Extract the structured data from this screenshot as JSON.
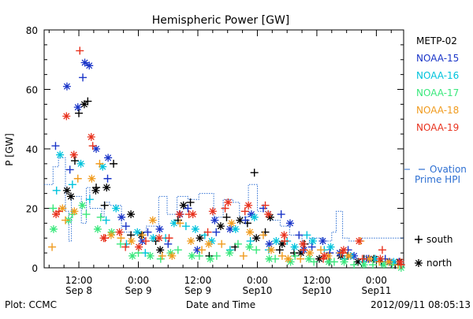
{
  "chart_data": {
    "type": "scatter",
    "title": "Hemispheric Power [GW]",
    "xlabel": "Date and Time",
    "ylabel": "P [GW]",
    "ylim": [
      0,
      80
    ],
    "y_ticks": [
      0,
      20,
      40,
      60,
      80
    ],
    "xlim": [
      5.0,
      77.5
    ],
    "x_ticks": [
      {
        "x": 12,
        "labels": [
          "12:00",
          "Sep 8"
        ]
      },
      {
        "x": 24,
        "labels": [
          "0:00",
          "Sep 9"
        ]
      },
      {
        "x": 36,
        "labels": [
          "12:00",
          "Sep 9"
        ]
      },
      {
        "x": 48,
        "labels": [
          "0:00",
          "Sep10"
        ]
      },
      {
        "x": 60,
        "labels": [
          "12:00",
          "Sep10"
        ]
      },
      {
        "x": 72,
        "labels": [
          "0:00",
          "Sep11"
        ]
      }
    ],
    "x_units": "hours from 2012-09-08 00:00",
    "footer_left": "Plot: CCMC",
    "footer_right": "2012/09/11 08:05:13",
    "marker_legend": [
      {
        "symbol": "+",
        "label": "south"
      },
      {
        "symbol": "*",
        "label": "north"
      }
    ],
    "series": [
      {
        "name": "METP-02",
        "color": "#000000",
        "south": [
          [
            12,
            52
          ],
          [
            13.8,
            56
          ],
          [
            11.2,
            36
          ],
          [
            15.5,
            27
          ],
          [
            19,
            35
          ],
          [
            17.2,
            21
          ],
          [
            22.5,
            11
          ],
          [
            27.5,
            9
          ],
          [
            32,
            16
          ],
          [
            34.5,
            22
          ],
          [
            38.3,
            4
          ],
          [
            41.8,
            17
          ],
          [
            43.5,
            7
          ],
          [
            47.4,
            32
          ],
          [
            46,
            15
          ],
          [
            49.6,
            12
          ],
          [
            52.5,
            6
          ],
          [
            55.4,
            5
          ],
          [
            57.5,
            8
          ],
          [
            62.5,
            2
          ],
          [
            66.2,
            4
          ],
          [
            69.5,
            3
          ],
          [
            73,
            2
          ],
          [
            75.8,
            1
          ]
        ],
        "north": [
          [
            13.1,
            55
          ],
          [
            9.6,
            26
          ],
          [
            10.4,
            24
          ],
          [
            15.4,
            26
          ],
          [
            17.6,
            27
          ],
          [
            22.5,
            18
          ],
          [
            24.6,
            11
          ],
          [
            28.4,
            6
          ],
          [
            33.1,
            21
          ],
          [
            36.4,
            10
          ],
          [
            40.6,
            14
          ],
          [
            44.5,
            16
          ],
          [
            47.8,
            10
          ],
          [
            50.6,
            17
          ],
          [
            53,
            8
          ],
          [
            56.8,
            5
          ],
          [
            60.5,
            3
          ],
          [
            64.8,
            4
          ],
          [
            68.3,
            2
          ],
          [
            71.5,
            3
          ],
          [
            76.6,
            2
          ]
        ]
      },
      {
        "name": "NOAA-15",
        "color": "#1a35c8",
        "south": [
          [
            7.3,
            41
          ],
          [
            10.2,
            33
          ],
          [
            12.8,
            64
          ],
          [
            17.8,
            30
          ],
          [
            21.5,
            14
          ],
          [
            25.9,
            12
          ],
          [
            30,
            8
          ],
          [
            34,
            20
          ],
          [
            39.7,
            12
          ],
          [
            45.6,
            16
          ],
          [
            49.2,
            20
          ],
          [
            52.8,
            18
          ],
          [
            56.4,
            11
          ],
          [
            59,
            7
          ],
          [
            62.6,
            5
          ],
          [
            66.3,
            6
          ],
          [
            70,
            3
          ],
          [
            73.8,
            3
          ],
          [
            76.6,
            2
          ]
        ],
        "north": [
          [
            9.6,
            61
          ],
          [
            13.2,
            69
          ],
          [
            14.1,
            68
          ],
          [
            11.8,
            54
          ],
          [
            15.5,
            40
          ],
          [
            17.9,
            37
          ],
          [
            20.6,
            17
          ],
          [
            24.8,
            9
          ],
          [
            28.3,
            13
          ],
          [
            32.4,
            18
          ],
          [
            35.9,
            6
          ],
          [
            39.4,
            16
          ],
          [
            42.5,
            13
          ],
          [
            46.8,
            18
          ],
          [
            50.4,
            8
          ],
          [
            54.6,
            15
          ],
          [
            57.4,
            6
          ],
          [
            61.2,
            9
          ],
          [
            64.6,
            5
          ],
          [
            67.5,
            4
          ],
          [
            70.4,
            3
          ],
          [
            74.7,
            2
          ]
        ]
      },
      {
        "name": "NOAA-16",
        "color": "#00c3dc",
        "south": [
          [
            7.5,
            26
          ],
          [
            10.7,
            28
          ],
          [
            14.2,
            23
          ],
          [
            17.5,
            16
          ],
          [
            21.6,
            8
          ],
          [
            25.4,
            5
          ],
          [
            29.5,
            10
          ],
          [
            33.6,
            14
          ],
          [
            37.4,
            11
          ],
          [
            42.5,
            6
          ],
          [
            46.6,
            9
          ],
          [
            50.3,
            6
          ],
          [
            54,
            9
          ],
          [
            58,
            11
          ],
          [
            61.5,
            6
          ],
          [
            65.6,
            3
          ],
          [
            69.4,
            2
          ],
          [
            73.2,
            2
          ]
        ],
        "north": [
          [
            8.2,
            38
          ],
          [
            12.4,
            35
          ],
          [
            16.8,
            34
          ],
          [
            19.5,
            20
          ],
          [
            23.8,
            12
          ],
          [
            27,
            10
          ],
          [
            31.2,
            15
          ],
          [
            35.5,
            13
          ],
          [
            38.8,
            9
          ],
          [
            43.6,
            13
          ],
          [
            47.4,
            17
          ],
          [
            51.8,
            9
          ],
          [
            55.5,
            7
          ],
          [
            59.2,
            9
          ],
          [
            62.8,
            7
          ],
          [
            66.8,
            4
          ],
          [
            71.8,
            3
          ],
          [
            75.5,
            2
          ]
        ]
      },
      {
        "name": "NOAA-17",
        "color": "#39e87c",
        "south": [
          [
            6.8,
            20
          ],
          [
            10.7,
            18
          ],
          [
            13.5,
            18
          ],
          [
            16.4,
            17
          ],
          [
            20.4,
            8
          ],
          [
            24,
            5
          ],
          [
            28.5,
            3
          ],
          [
            32,
            6
          ],
          [
            36.3,
            4
          ],
          [
            39.8,
            4
          ],
          [
            44.1,
            8
          ],
          [
            47.8,
            6
          ],
          [
            51.6,
            3
          ],
          [
            55.6,
            4
          ],
          [
            59.4,
            2
          ],
          [
            63.5,
            2
          ],
          [
            67.5,
            1
          ],
          [
            71.3,
            1
          ],
          [
            75.2,
            1
          ]
        ],
        "north": [
          [
            6.9,
            13
          ],
          [
            9.9,
            16
          ],
          [
            12.7,
            21
          ],
          [
            15.8,
            13
          ],
          [
            18.6,
            12
          ],
          [
            22.8,
            4
          ],
          [
            26.4,
            4
          ],
          [
            30.5,
            5
          ],
          [
            34.8,
            4
          ],
          [
            38.5,
            3
          ],
          [
            42.4,
            5
          ],
          [
            46.4,
            7
          ],
          [
            50.4,
            3
          ],
          [
            54.7,
            2
          ],
          [
            58.4,
            3
          ],
          [
            62.4,
            2
          ],
          [
            65.5,
            2
          ],
          [
            69.5,
            1
          ],
          [
            73.5,
            1
          ],
          [
            77,
            0
          ]
        ]
      },
      {
        "name": "NOAA-18",
        "color": "#f09b1e",
        "south": [
          [
            6.6,
            7
          ],
          [
            9.3,
            16
          ],
          [
            11.8,
            30
          ],
          [
            16.2,
            35
          ],
          [
            20.5,
            10
          ],
          [
            24.8,
            11
          ],
          [
            28.8,
            4
          ],
          [
            32.4,
            15
          ],
          [
            36.8,
            6
          ],
          [
            40.8,
            8
          ],
          [
            45.2,
            4
          ],
          [
            49.2,
            11
          ],
          [
            53,
            4
          ],
          [
            56.7,
            3
          ],
          [
            60.8,
            6
          ],
          [
            64.8,
            5
          ],
          [
            68.8,
            9
          ],
          [
            72.6,
            2
          ],
          [
            76.4,
            1
          ]
        ],
        "north": [
          [
            8.7,
            20
          ],
          [
            11.1,
            19
          ],
          [
            14.6,
            30
          ],
          [
            18.5,
            11
          ],
          [
            22.6,
            9
          ],
          [
            26.9,
            16
          ],
          [
            30.8,
            4
          ],
          [
            34.6,
            9
          ],
          [
            38.2,
            8
          ],
          [
            42.8,
            15
          ],
          [
            46.5,
            12
          ],
          [
            50.8,
            6
          ],
          [
            54.2,
            3
          ],
          [
            58.6,
            5
          ],
          [
            62.3,
            4
          ],
          [
            66.4,
            4
          ],
          [
            70.6,
            3
          ],
          [
            74.5,
            2
          ]
        ]
      },
      {
        "name": "NOAA-19",
        "color": "#e8321e",
        "south": [
          [
            8,
            19
          ],
          [
            12.2,
            73
          ],
          [
            14.8,
            41
          ],
          [
            17.3,
            10
          ],
          [
            21.4,
            7
          ],
          [
            25.5,
            9
          ],
          [
            30.2,
            10
          ],
          [
            34.2,
            18
          ],
          [
            38,
            12
          ],
          [
            41.5,
            20
          ],
          [
            45.5,
            19
          ],
          [
            49.6,
            21
          ],
          [
            53.5,
            9
          ],
          [
            57.3,
            6
          ],
          [
            61.3,
            3
          ],
          [
            65.2,
            5
          ],
          [
            69.2,
            3
          ],
          [
            73.2,
            6
          ],
          [
            77,
            1
          ]
        ],
        "north": [
          [
            7.4,
            18
          ],
          [
            9.5,
            51
          ],
          [
            11,
            38
          ],
          [
            14.5,
            44
          ],
          [
            17,
            10
          ],
          [
            20.2,
            12
          ],
          [
            24.1,
            7
          ],
          [
            28.2,
            10
          ],
          [
            32.3,
            18
          ],
          [
            35,
            18
          ],
          [
            39,
            19
          ],
          [
            42.1,
            22
          ],
          [
            46.2,
            21
          ],
          [
            50.2,
            18
          ],
          [
            53.4,
            11
          ],
          [
            57.2,
            8
          ],
          [
            61.5,
            4
          ],
          [
            65.4,
            6
          ],
          [
            68.5,
            9
          ],
          [
            72.8,
            3
          ],
          [
            76.8,
            2
          ]
        ]
      }
    ],
    "ovation": {
      "name": "Ovation Prime HPI",
      "color": "#2d6fd2",
      "points": [
        [
          5,
          28
        ],
        [
          6.8,
          28
        ],
        [
          6.8,
          34
        ],
        [
          7.9,
          34
        ],
        [
          7.9,
          37
        ],
        [
          9.3,
          37
        ],
        [
          9.3,
          19
        ],
        [
          10,
          19
        ],
        [
          10,
          9
        ],
        [
          10.5,
          9
        ],
        [
          10.5,
          24
        ],
        [
          12.5,
          24
        ],
        [
          12.5,
          15
        ],
        [
          13.5,
          15
        ],
        [
          13.5,
          27
        ],
        [
          14.2,
          27
        ],
        [
          14.2,
          20
        ],
        [
          16.6,
          20
        ],
        [
          16.6,
          17
        ],
        [
          17.1,
          17
        ],
        [
          17.1,
          22
        ],
        [
          18.2,
          22
        ],
        [
          18.2,
          21
        ],
        [
          20.6,
          21
        ],
        [
          20.6,
          12
        ],
        [
          25.6,
          12
        ],
        [
          25.6,
          14
        ],
        [
          28.1,
          14
        ],
        [
          28.1,
          24
        ],
        [
          29.8,
          24
        ],
        [
          29.8,
          18
        ],
        [
          31.8,
          18
        ],
        [
          31.8,
          24
        ],
        [
          34,
          24
        ],
        [
          34,
          23
        ],
        [
          36.2,
          23
        ],
        [
          36.2,
          25
        ],
        [
          39.2,
          25
        ],
        [
          39.2,
          17
        ],
        [
          41.1,
          17
        ],
        [
          41.1,
          23
        ],
        [
          43.1,
          23
        ],
        [
          43.1,
          22
        ],
        [
          44.4,
          22
        ],
        [
          44.4,
          17
        ],
        [
          46.2,
          17
        ],
        [
          46.2,
          28
        ],
        [
          48,
          28
        ],
        [
          48,
          19
        ],
        [
          50.5,
          19
        ],
        [
          50.5,
          16
        ],
        [
          52.6,
          16
        ],
        [
          52.6,
          14
        ],
        [
          54.5,
          14
        ],
        [
          54.5,
          11
        ],
        [
          57,
          11
        ],
        [
          57,
          8
        ],
        [
          58.5,
          8
        ],
        [
          58.5,
          10
        ],
        [
          61.3,
          10
        ],
        [
          61.3,
          9
        ],
        [
          63,
          9
        ],
        [
          63,
          12
        ],
        [
          63.9,
          12
        ],
        [
          63.9,
          19
        ],
        [
          65.2,
          19
        ],
        [
          65.2,
          10
        ],
        [
          66.5,
          10
        ],
        [
          66.5,
          9
        ],
        [
          69,
          9
        ],
        [
          69,
          10
        ],
        [
          77.5,
          10
        ]
      ]
    }
  }
}
